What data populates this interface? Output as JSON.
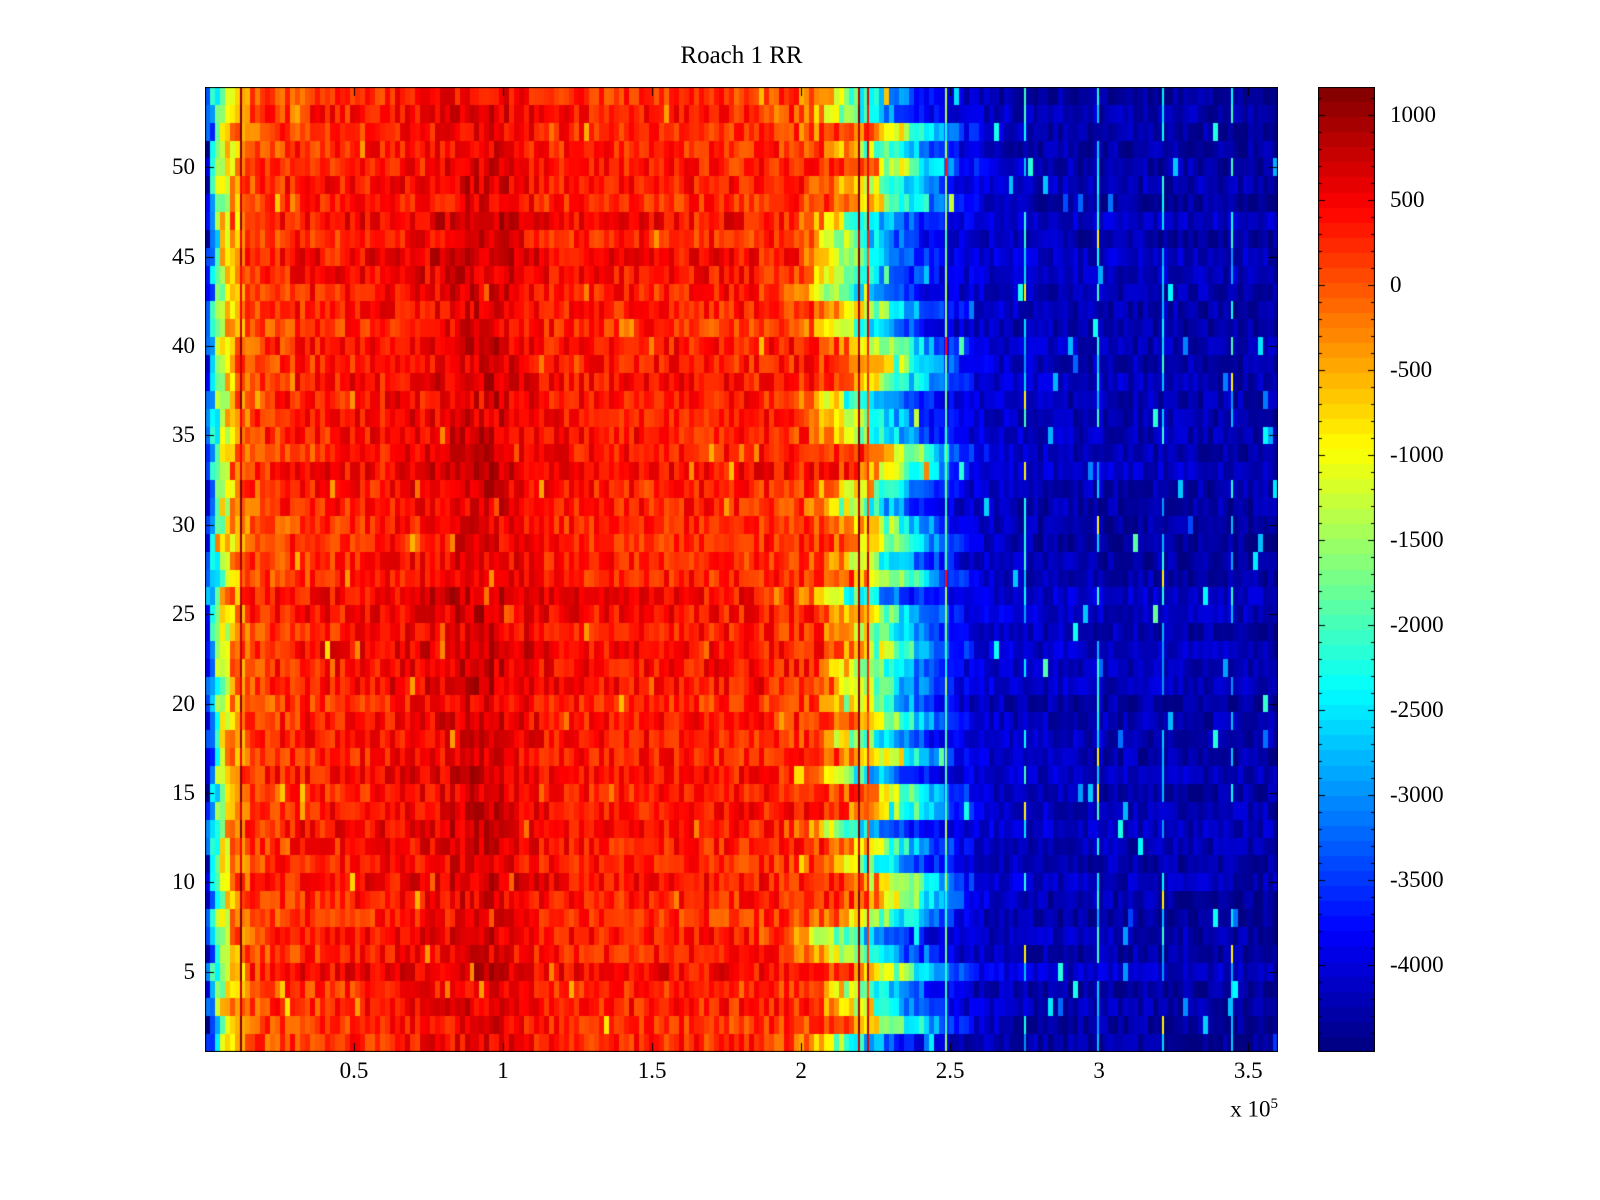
{
  "title": "Roach 1 RR",
  "x_axis": {
    "tick_labels": [
      "0.5",
      "1",
      "1.5",
      "2",
      "2.5",
      "3",
      "3.5"
    ],
    "tick_values": [
      50000,
      100000,
      150000,
      200000,
      250000,
      300000,
      350000
    ],
    "scale": {
      "multiplier": "x 10",
      "exponent": "5"
    }
  },
  "y_axis": {
    "tick_labels": [
      "5",
      "10",
      "15",
      "20",
      "25",
      "30",
      "35",
      "40",
      "45",
      "50"
    ],
    "tick_values": [
      5,
      10,
      15,
      20,
      25,
      30,
      35,
      40,
      45,
      50
    ]
  },
  "colorbar": {
    "tick_labels": [
      "1000",
      "500",
      "0",
      "-500",
      "-1000",
      "-1500",
      "-2000",
      "-2500",
      "-3000",
      "-3500",
      "-4000"
    ],
    "tick_values": [
      1000,
      500,
      0,
      -500,
      -1000,
      -1500,
      -2000,
      -2500,
      -3000,
      -3500,
      -4000
    ],
    "min": -4512,
    "max": 1165,
    "levels": 64,
    "minor_tick_step": 100,
    "colormap": "jet"
  },
  "chart_data": {
    "type": "heatmap",
    "title": "Roach 1 RR",
    "xlabel": "",
    "ylabel": "",
    "x_range": [
      0,
      360000
    ],
    "y_range": [
      1,
      54
    ],
    "rows": 54,
    "cols": 215,
    "color_axis": [
      -4512,
      1165
    ],
    "colormap": "jet",
    "grid": false,
    "legend": "colorbar-right",
    "description": "Trial-by-time heatmap: warm (red/dark-red) values ~0..700 from x=0 to ~2.05e5 with darkest band near x=0.85-1.0e5, thin blue-cyan-yellow strip at extreme left edge, transition through yellow (~2.1e5) and cyan (~2.3e5) to deep blue ~-4200 for x>2.5e5, with sparse bright vertical streaks in the blue zone",
    "mean_profile": {
      "x": [
        0,
        1500,
        3500,
        6000,
        9000,
        15000,
        30000,
        55000,
        80000,
        88000,
        97000,
        105000,
        115000,
        130000,
        150000,
        170000,
        185000,
        198000,
        207000,
        214000,
        221000,
        228000,
        236000,
        245000,
        258000,
        280000,
        360000
      ],
      "value": [
        -4300,
        -3400,
        -2200,
        -1200,
        -500,
        50,
        250,
        350,
        520,
        640,
        660,
        520,
        380,
        320,
        330,
        300,
        280,
        230,
        60,
        -450,
        -1150,
        -1900,
        -2700,
        -3500,
        -4050,
        -4200,
        -4300
      ]
    },
    "noise_amplitude": {
      "x": [
        0,
        3000,
        8000,
        15000,
        60000,
        150000,
        200000,
        212000,
        225000,
        240000,
        260000,
        360000
      ],
      "amp": [
        700,
        900,
        700,
        400,
        330,
        320,
        380,
        550,
        650,
        450,
        260,
        240
      ]
    },
    "row_offset_amplitude": 130,
    "row_transition_shift_amplitude": 15000,
    "transition_center_x": 222000,
    "transition_width_x": 50000,
    "spike_probability": 0.018,
    "streaks": [
      {
        "x": 12000,
        "value": 900,
        "dashed": false
      },
      {
        "x": 219500,
        "value": 1100,
        "dashed": false
      },
      {
        "x": 222500,
        "value": 420,
        "dashed": false
      },
      {
        "x": 248500,
        "value": -1900,
        "dashed": false
      },
      {
        "x": 275000,
        "value": -2500,
        "dashed": true
      },
      {
        "x": 299500,
        "value": -2500,
        "dashed": true
      },
      {
        "x": 321500,
        "value": -2500,
        "dashed": true
      },
      {
        "x": 344500,
        "value": -2500,
        "dashed": true
      }
    ]
  }
}
